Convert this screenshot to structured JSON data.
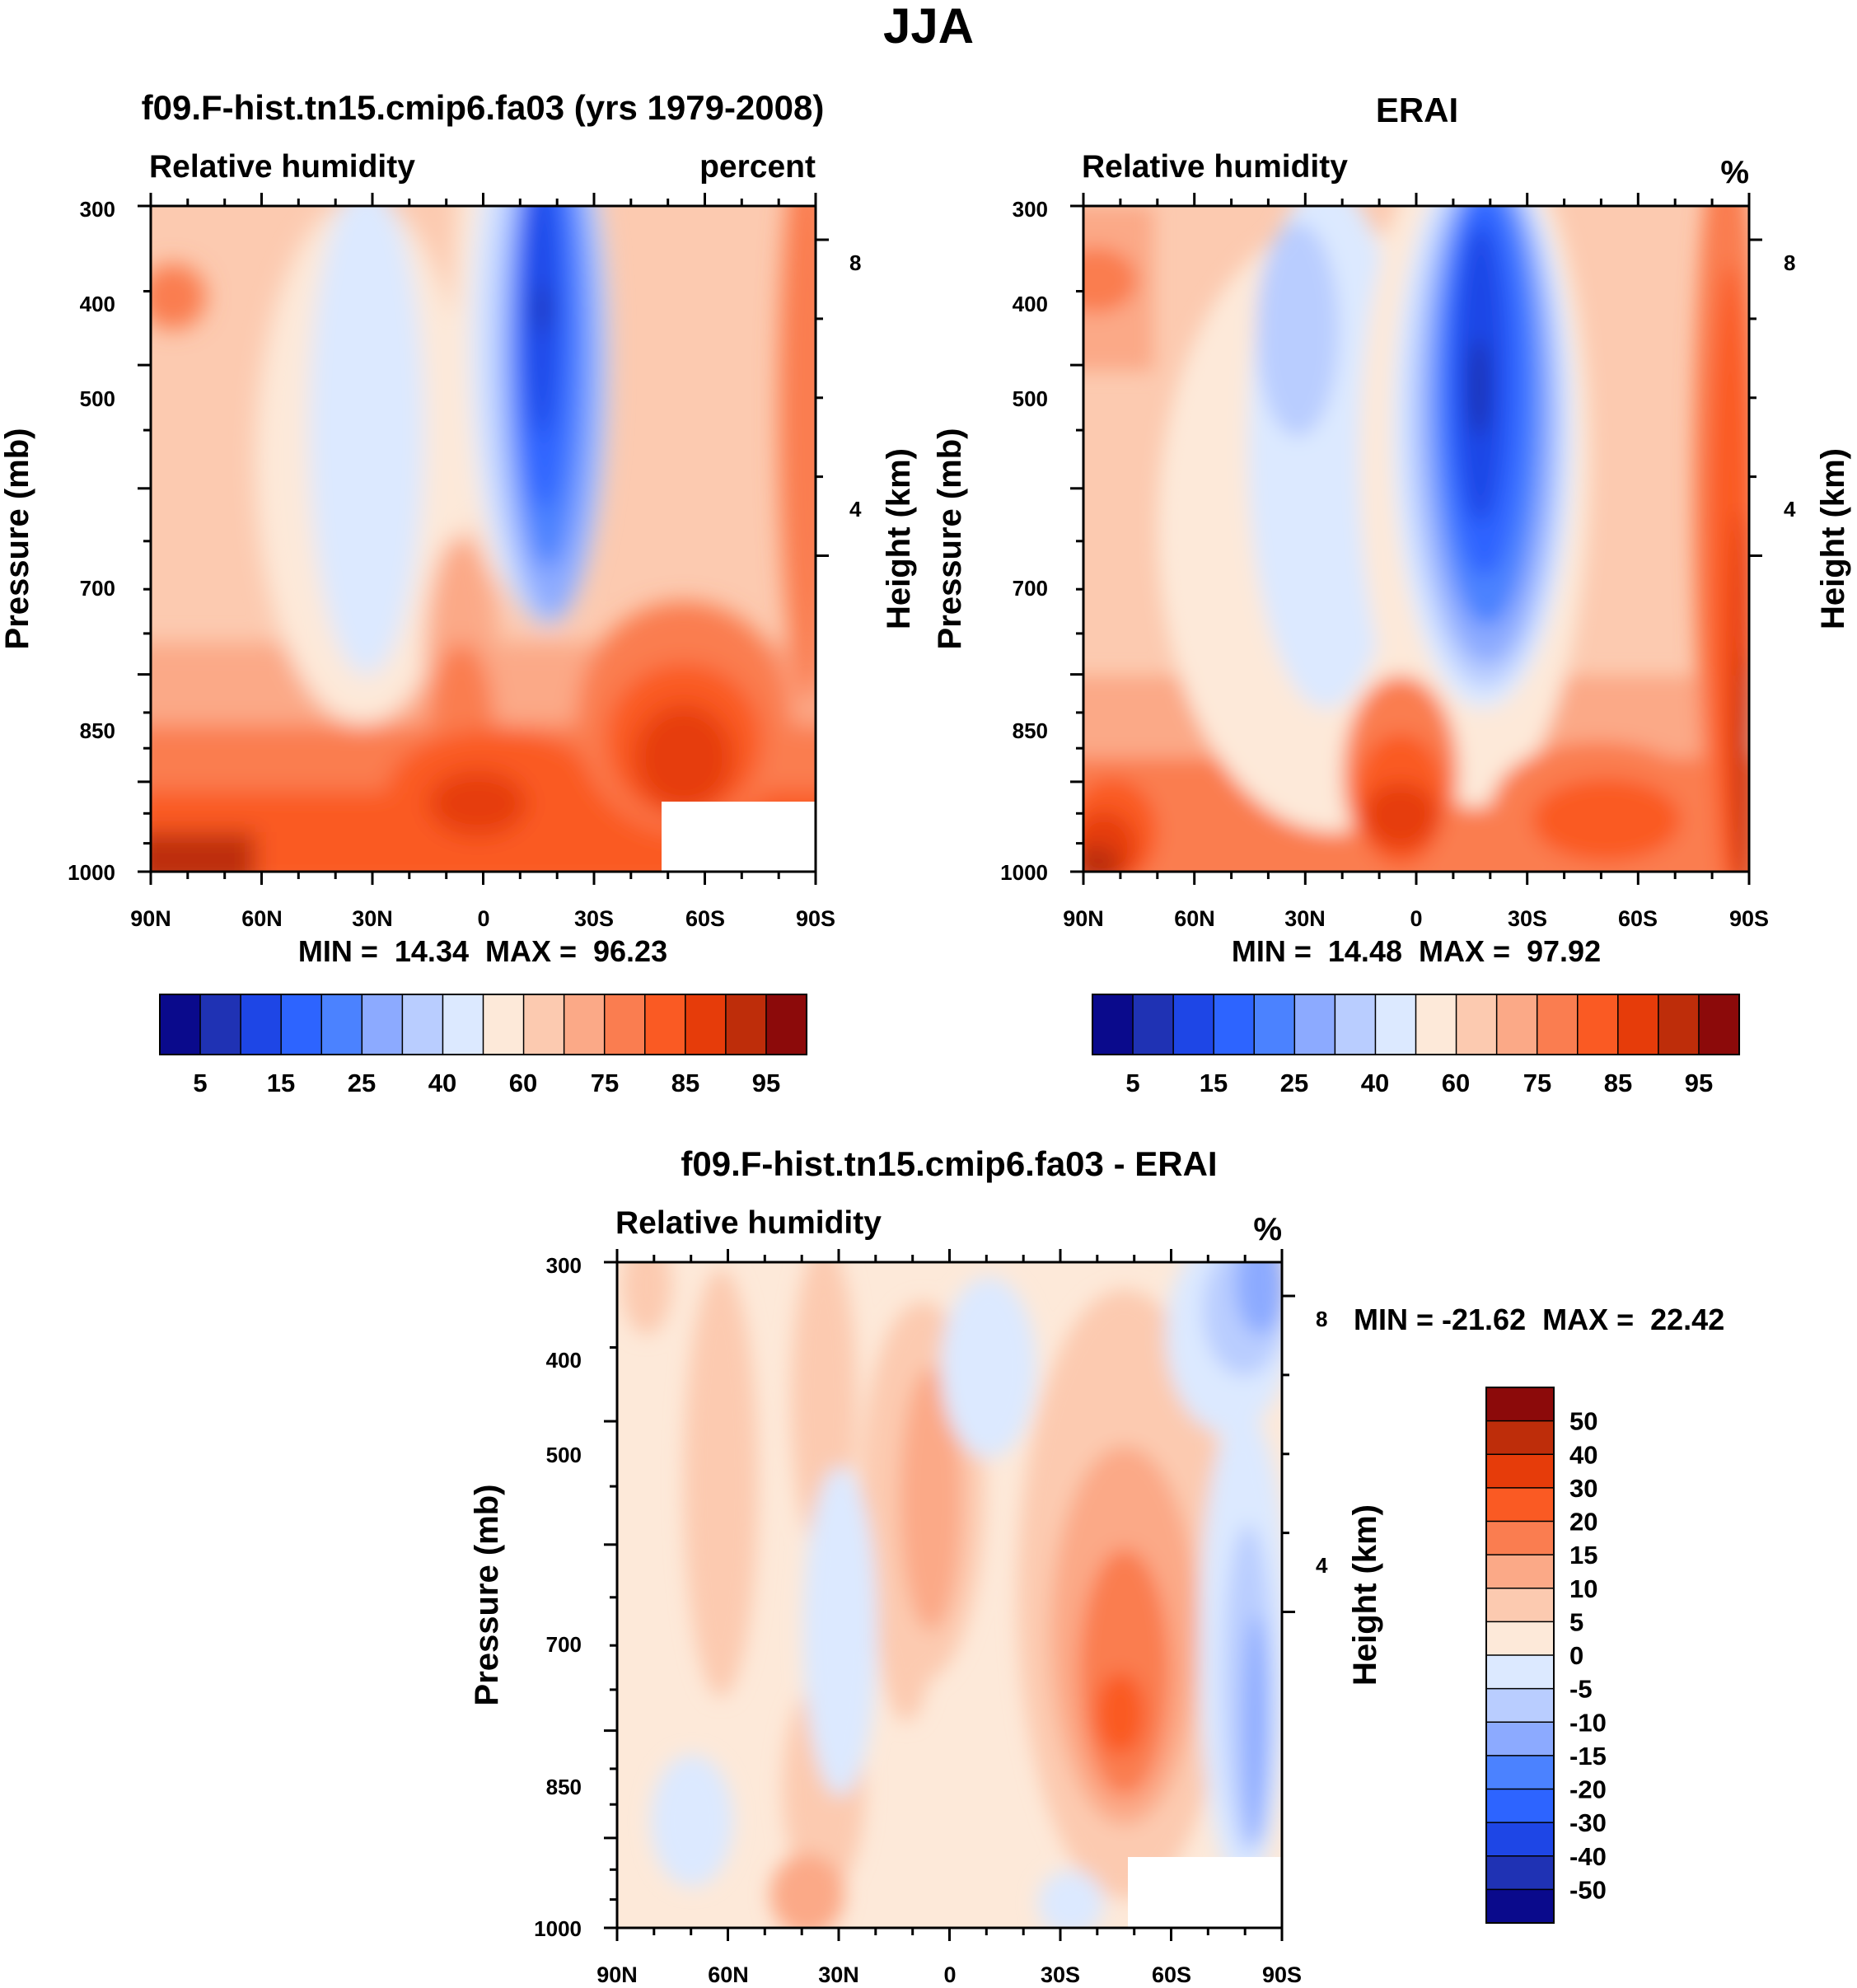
{
  "figure_title": "JJA",
  "colors": {
    "abs_palette": [
      "#0a0a8c",
      "#1f32b4",
      "#1e46e6",
      "#2d64ff",
      "#4b82ff",
      "#8caaff",
      "#b9cdff",
      "#dce9ff",
      "#fde9d9",
      "#fccab0",
      "#fba987",
      "#fa7d50",
      "#fa5a23",
      "#e63c0a",
      "#be2d0a",
      "#8c0a0a"
    ],
    "diff_palette": [
      "#0a0a8c",
      "#1f32b4",
      "#1e46e6",
      "#2d64ff",
      "#4b82ff",
      "#8caaff",
      "#b9cdff",
      "#dce9ff",
      "#fde9d9",
      "#fccab0",
      "#fba987",
      "#fa7d50",
      "#fa5a23",
      "#e63c0a",
      "#be2d0a",
      "#8c0a0a"
    ]
  },
  "chart_data": [
    {
      "type": "heatmap",
      "title": "f09.F-hist.tn15.cmip6.fa03 (yrs 1979-2008)",
      "left_subtitle": "Relative humidity",
      "right_subtitle": "percent",
      "ylabel": "Pressure (mb)",
      "ylabel_right": "Height (km)",
      "x_ticks": [
        "90N",
        "60N",
        "30N",
        "0",
        "30S",
        "60S",
        "90S"
      ],
      "y_ticks": [
        "300",
        "400",
        "500",
        "700",
        "850",
        "1000"
      ],
      "height_ticks": [
        "8",
        "4"
      ],
      "stats": "MIN =  14.34  MAX =  96.23",
      "min": 14.34,
      "max": 96.23,
      "colorbar_labels": [
        "5",
        "15",
        "25",
        "40",
        "60",
        "75",
        "85",
        "95"
      ],
      "colorbar_orientation": "horizontal"
    },
    {
      "type": "heatmap",
      "title": "ERAI",
      "left_subtitle": "Relative humidity",
      "right_subtitle": "%",
      "ylabel": "Pressure (mb)",
      "ylabel_right": "Height (km)",
      "x_ticks": [
        "90N",
        "60N",
        "30N",
        "0",
        "30S",
        "60S",
        "90S"
      ],
      "y_ticks": [
        "300",
        "400",
        "500",
        "700",
        "850",
        "1000"
      ],
      "height_ticks": [
        "8",
        "4"
      ],
      "stats": "MIN =  14.48  MAX =  97.92",
      "min": 14.48,
      "max": 97.92,
      "colorbar_labels": [
        "5",
        "15",
        "25",
        "40",
        "60",
        "75",
        "85",
        "95"
      ],
      "colorbar_orientation": "horizontal"
    },
    {
      "type": "heatmap",
      "title": "f09.F-hist.tn15.cmip6.fa03 - ERAI",
      "left_subtitle": "Relative humidity",
      "right_subtitle": "%",
      "ylabel": "Pressure (mb)",
      "ylabel_right": "Height (km)",
      "x_ticks": [
        "90N",
        "60N",
        "30N",
        "0",
        "30S",
        "60S",
        "90S"
      ],
      "y_ticks": [
        "300",
        "400",
        "500",
        "700",
        "850",
        "1000"
      ],
      "height_ticks": [
        "8",
        "4"
      ],
      "stats": "MIN = -21.62  MAX =  22.42",
      "min": -21.62,
      "max": 22.42,
      "colorbar_labels": [
        "50",
        "40",
        "30",
        "20",
        "15",
        "10",
        "5",
        "0",
        "-5",
        "-10",
        "-15",
        "-20",
        "-30",
        "-40",
        "-50"
      ],
      "colorbar_orientation": "vertical"
    }
  ]
}
